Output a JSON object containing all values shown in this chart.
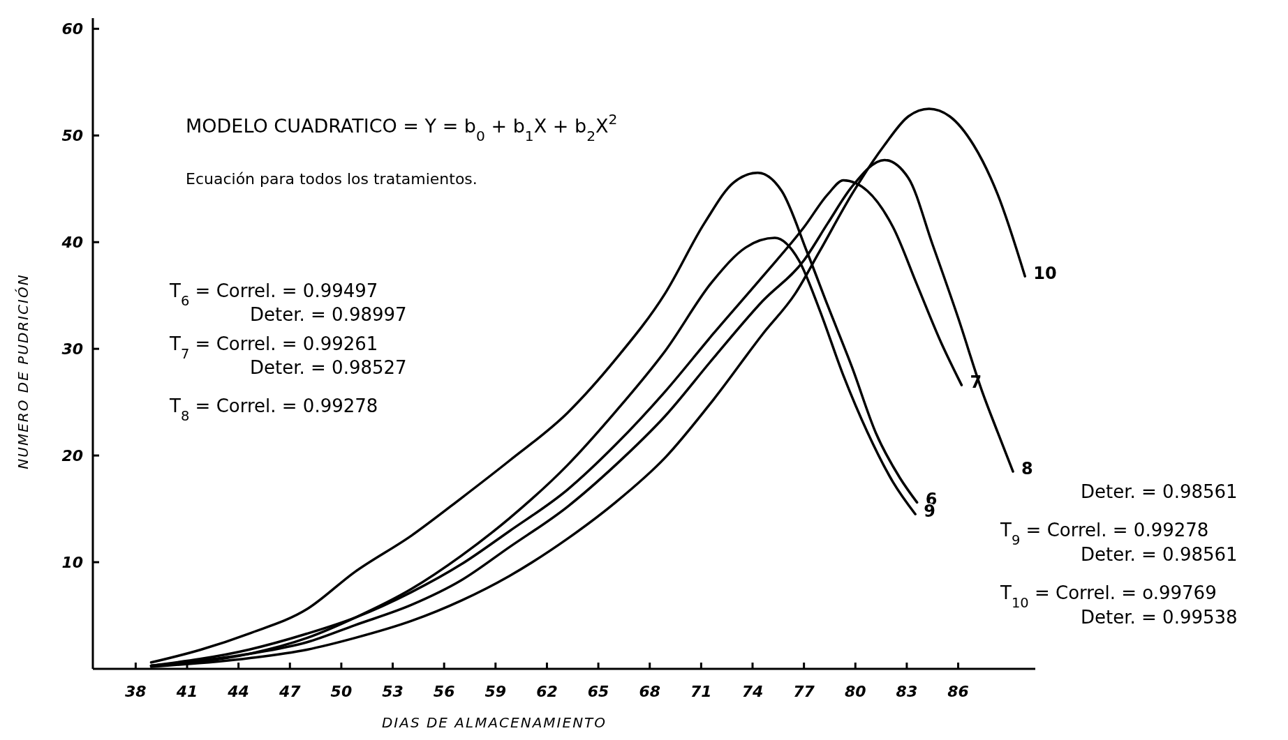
{
  "chart_data": {
    "type": "line",
    "title": "MODELO CUADRATICO = Y = b$_{0}$ + b$_{1}$X + b$_{2}$X$^{2}$",
    "subtitle": "Ecuación para todos los tratamientos.",
    "xlabel": "DIAS DE ALMACENAMIENTO",
    "ylabel": "NUMERO DE PUDRICIÓN",
    "xlim": [
      35.5,
      90.5
    ],
    "xticks": [
      38,
      41,
      44,
      47,
      50,
      53,
      56,
      59,
      62,
      65,
      68,
      71,
      74,
      77,
      80,
      83,
      86
    ],
    "ylim": [
      0,
      61
    ],
    "yticks": [
      10,
      20,
      30,
      40,
      50,
      60
    ],
    "grid": false,
    "marker": "none",
    "line_style": "solid",
    "annotations": [
      "T$_{6}$ = Correl. = 0.99497",
      "Deter. = 0.98997",
      "T$_{7}$ = Correl. = 0.99261",
      "Deter. = 0.98527",
      "T$_{8}$ = Correl. = 0.99278",
      "Deter. = 0.98561",
      "T$_{9}$ = Correl. = 0.99278",
      "Deter. = 0.98561",
      "T$_{10}$ = Correl. = o.99769",
      "Deter. = 0.99538"
    ],
    "series": [
      {
        "name": "6",
        "color": "#000000",
        "x": [
          38.9,
          41.8,
          44.6,
          48,
          50.8,
          54.1,
          57,
          59.8,
          63.2,
          66,
          68.9,
          71.2,
          72.9,
          74.3,
          75.7,
          77.2,
          78.4,
          79.8,
          81.2,
          82.6,
          83.6
        ],
        "values": [
          0.6,
          1.8,
          3.3,
          5.6,
          9.1,
          12.5,
          16,
          19.5,
          24,
          29,
          35.2,
          41.8,
          45.6,
          46.5,
          44.8,
          39,
          34,
          28.3,
          22.1,
          17.9,
          15.6
        ]
      },
      {
        "name": "7",
        "color": "#000000",
        "x": [
          38.9,
          44.6,
          48,
          50.8,
          54.1,
          57,
          59.8,
          63.2,
          66,
          68.9,
          71.7,
          74.6,
          77,
          78.4,
          79.3,
          80.7,
          82.2,
          83.6,
          85,
          86.2
        ],
        "values": [
          0.3,
          1.8,
          3.3,
          4.8,
          7.2,
          9.8,
          12.9,
          16.8,
          21,
          26,
          31.4,
          36.8,
          41.4,
          44.5,
          45.8,
          44.8,
          41.4,
          36,
          30.6,
          26.6
        ]
      },
      {
        "name": "8",
        "color": "#000000",
        "x": [
          38.9,
          44.6,
          48,
          50.8,
          54.1,
          57,
          59.8,
          63.2,
          66,
          68.9,
          71.7,
          74.6,
          77,
          78.4,
          79.8,
          81.7,
          83.1,
          84.5,
          86,
          87.4,
          88.3,
          89.2
        ],
        "values": [
          0.3,
          1.4,
          2.5,
          4.1,
          6,
          8.3,
          11.4,
          15.2,
          19.1,
          23.7,
          29.1,
          34.5,
          38.3,
          41.8,
          45.2,
          47.7,
          46,
          39.8,
          32.9,
          26,
          22.2,
          18.5
        ]
      },
      {
        "name": "9",
        "color": "#000000",
        "x": [
          38.9,
          44.6,
          48,
          50.8,
          54.1,
          57,
          59.8,
          63.2,
          66,
          68.9,
          71.7,
          73.6,
          75.3,
          76.7,
          77.9,
          79.3,
          80.7,
          82.2,
          83.5
        ],
        "values": [
          0.3,
          1.4,
          2.9,
          4.8,
          7.5,
          10.6,
          14.1,
          19.1,
          24.1,
          29.8,
          36.4,
          39.5,
          40.4,
          38.3,
          33.7,
          27.5,
          22.2,
          17.5,
          14.5
        ]
      },
      {
        "name": "10",
        "color": "#000000",
        "x": [
          38.9,
          44.6,
          48,
          50.8,
          54.1,
          57,
          59.8,
          63.2,
          66,
          68.9,
          71.7,
          74.6,
          76.5,
          77.9,
          79.8,
          81.7,
          83.1,
          84.3,
          85.5,
          86.9,
          88.3,
          89.9
        ],
        "values": [
          0.2,
          1,
          1.8,
          2.9,
          4.5,
          6.4,
          8.7,
          12.2,
          15.6,
          19.8,
          25.2,
          31.4,
          35.2,
          39.1,
          44.5,
          49.1,
          51.8,
          52.5,
          51.8,
          49.1,
          44.5,
          36.8
        ]
      }
    ]
  }
}
